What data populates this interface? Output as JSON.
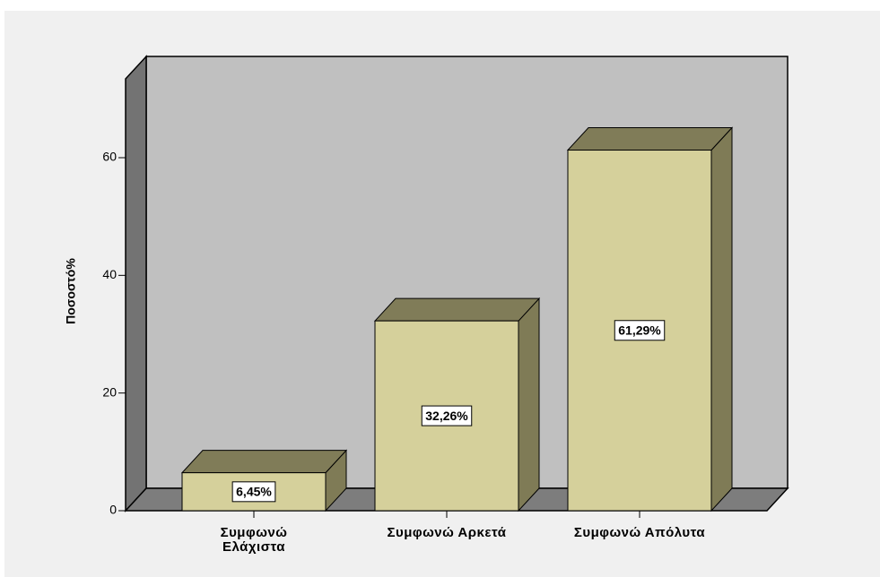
{
  "chart_data": {
    "type": "bar3d",
    "y_label": "Ποσοστό%",
    "categories": [
      "Συμφωνώ\nΕλάχιστα",
      "Συμφωνώ Αρκετά",
      "Συμφωνώ Απόλυτα"
    ],
    "values": [
      6.45,
      32.26,
      61.29
    ],
    "value_labels": [
      "6,45%",
      "32,26%",
      "61,29%"
    ],
    "color": "#d5d09b",
    "ylim": [
      0,
      73.4
    ],
    "yticks": [
      0,
      20,
      40,
      60
    ]
  }
}
